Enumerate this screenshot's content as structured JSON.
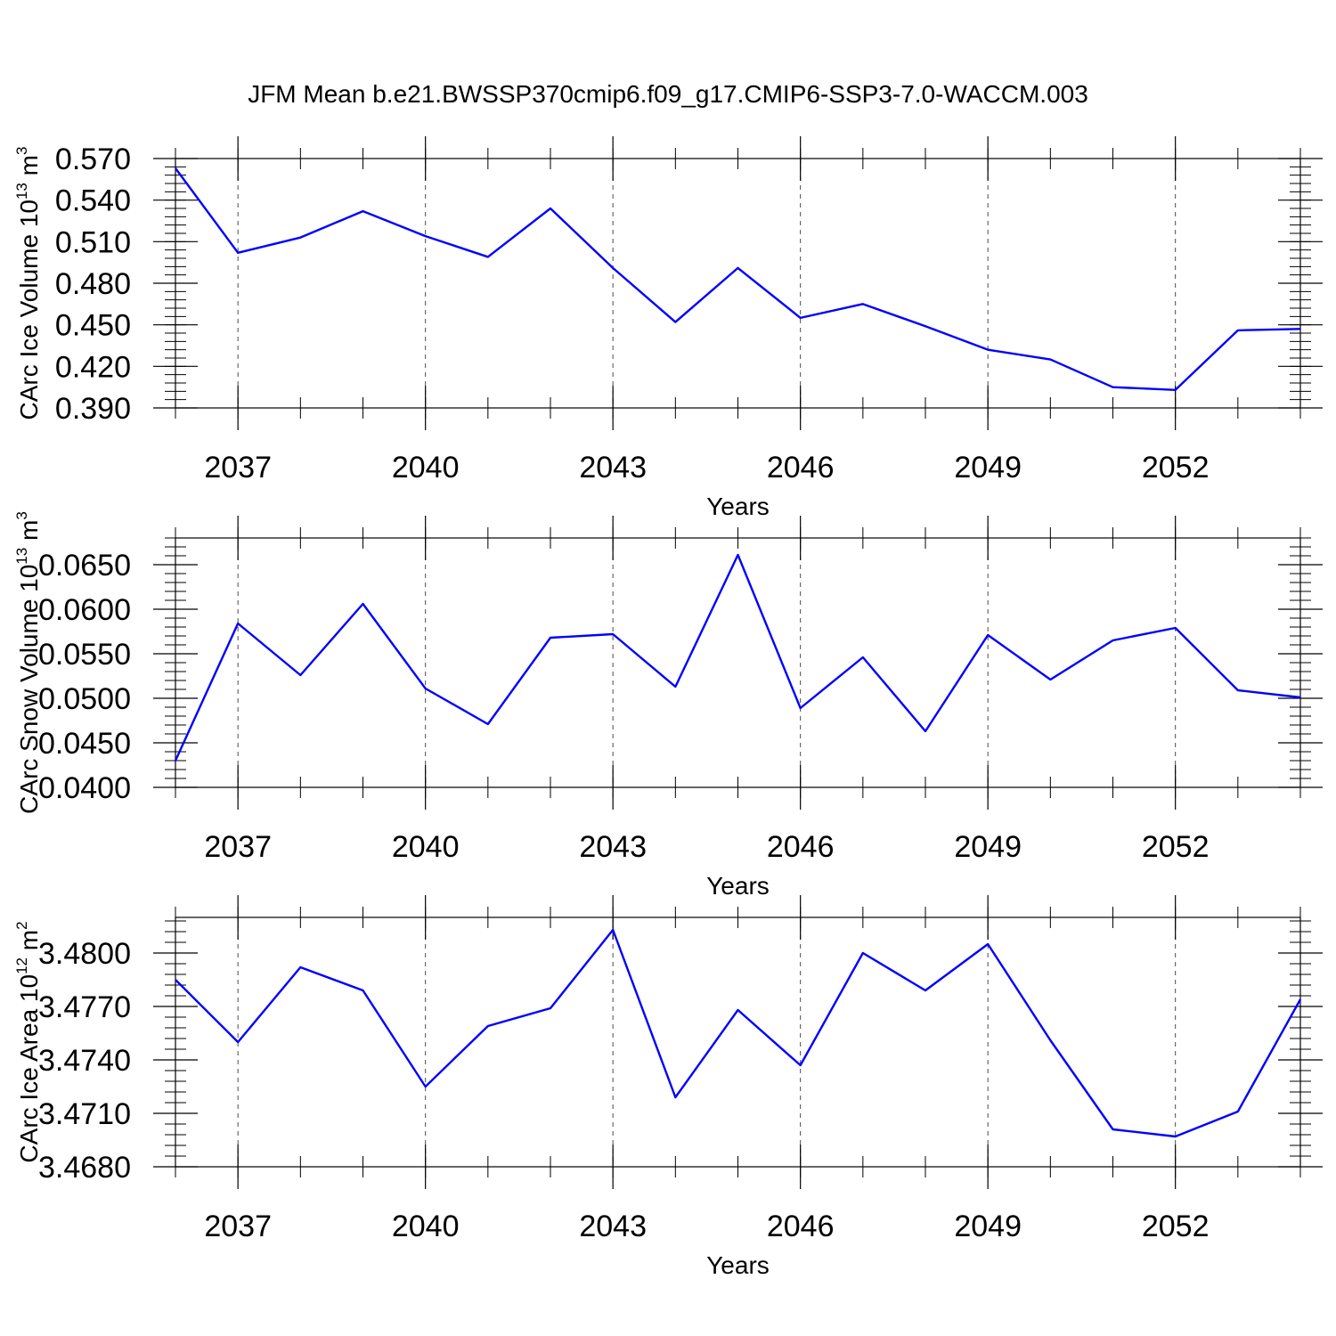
{
  "title": "JFM Mean b.e21.BWSSP370cmip6.f09_g17.CMIP6-SSP3-7.0-WACCM.003",
  "chart_data": [
    {
      "type": "line",
      "xlabel": "Years",
      "ylabel": {
        "base": "CArc Ice Volume 10",
        "exp1": "13",
        "mid": " m",
        "exp2": "3"
      },
      "x": [
        2036,
        2037,
        2038,
        2039,
        2040,
        2041,
        2042,
        2043,
        2044,
        2045,
        2046,
        2047,
        2048,
        2049,
        2050,
        2051,
        2052,
        2053,
        2054
      ],
      "xlim": [
        2036,
        2054
      ],
      "xticks": [
        2037,
        2040,
        2043,
        2046,
        2049,
        2052
      ],
      "xtick_labels": [
        "2037",
        "2040",
        "2043",
        "2046",
        "2049",
        "2052"
      ],
      "ylim": [
        0.39,
        0.57
      ],
      "yticks": [
        0.39,
        0.42,
        0.45,
        0.48,
        0.51,
        0.54,
        0.57
      ],
      "ytick_labels": [
        "0.390",
        "0.420",
        "0.450",
        "0.480",
        "0.510",
        "0.540",
        "0.570"
      ],
      "yminor_step": 0.006,
      "series": [
        {
          "color": "#0000ff",
          "values": [
            0.563,
            0.502,
            0.513,
            0.532,
            0.514,
            0.499,
            0.534,
            0.491,
            0.452,
            0.491,
            0.455,
            0.465,
            0.449,
            0.432,
            0.425,
            0.405,
            0.403,
            0.446,
            0.447
          ]
        }
      ],
      "grid": "dashed vertical lines at major x ticks"
    },
    {
      "type": "line",
      "xlabel": "Years",
      "ylabel": {
        "base": "CArc Snow Volume 10",
        "exp1": "13",
        "mid": " m",
        "exp2": "3"
      },
      "x": [
        2036,
        2037,
        2038,
        2039,
        2040,
        2041,
        2042,
        2043,
        2044,
        2045,
        2046,
        2047,
        2048,
        2049,
        2050,
        2051,
        2052,
        2053,
        2054
      ],
      "xlim": [
        2036,
        2054
      ],
      "xticks": [
        2037,
        2040,
        2043,
        2046,
        2049,
        2052
      ],
      "xtick_labels": [
        "2037",
        "2040",
        "2043",
        "2046",
        "2049",
        "2052"
      ],
      "ylim": [
        0.04,
        0.068
      ],
      "yticks": [
        0.04,
        0.045,
        0.05,
        0.055,
        0.06,
        0.065
      ],
      "ytick_labels": [
        "0.0400",
        "0.0450",
        "0.0500",
        "0.0550",
        "0.0600",
        "0.0650"
      ],
      "yminor_step": 0.001,
      "series": [
        {
          "color": "#0000ff",
          "values": [
            0.043,
            0.0584,
            0.0526,
            0.0606,
            0.0511,
            0.0471,
            0.0568,
            0.0572,
            0.0513,
            0.0661,
            0.0489,
            0.0546,
            0.0463,
            0.0571,
            0.0521,
            0.0565,
            0.0579,
            0.0509,
            0.0501
          ]
        }
      ],
      "grid": "dashed vertical lines at major x ticks"
    },
    {
      "type": "line",
      "xlabel": "Years",
      "ylabel": {
        "base": "CArc Ice Area 10",
        "exp1": "12",
        "mid": " m",
        "exp2": "2"
      },
      "x": [
        2036,
        2037,
        2038,
        2039,
        2040,
        2041,
        2042,
        2043,
        2044,
        2045,
        2046,
        2047,
        2048,
        2049,
        2050,
        2051,
        2052,
        2053,
        2054
      ],
      "xlim": [
        2036,
        2054
      ],
      "xticks": [
        2037,
        2040,
        2043,
        2046,
        2049,
        2052
      ],
      "xtick_labels": [
        "2037",
        "2040",
        "2043",
        "2046",
        "2049",
        "2052"
      ],
      "ylim": [
        3.468,
        3.482
      ],
      "yticks": [
        3.468,
        3.471,
        3.474,
        3.477,
        3.48
      ],
      "ytick_labels": [
        "3.4680",
        "3.4710",
        "3.4740",
        "3.4770",
        "3.4800"
      ],
      "yminor_step": 0.0006,
      "series": [
        {
          "color": "#0000ff",
          "values": [
            3.4785,
            3.475,
            3.4792,
            3.4779,
            3.4725,
            3.4759,
            3.4769,
            3.4813,
            3.4719,
            3.4768,
            3.4737,
            3.48,
            3.4779,
            3.4805,
            3.4751,
            3.4701,
            3.4697,
            3.4711,
            3.4774
          ]
        }
      ],
      "grid": "dashed vertical lines at major x ticks"
    }
  ]
}
